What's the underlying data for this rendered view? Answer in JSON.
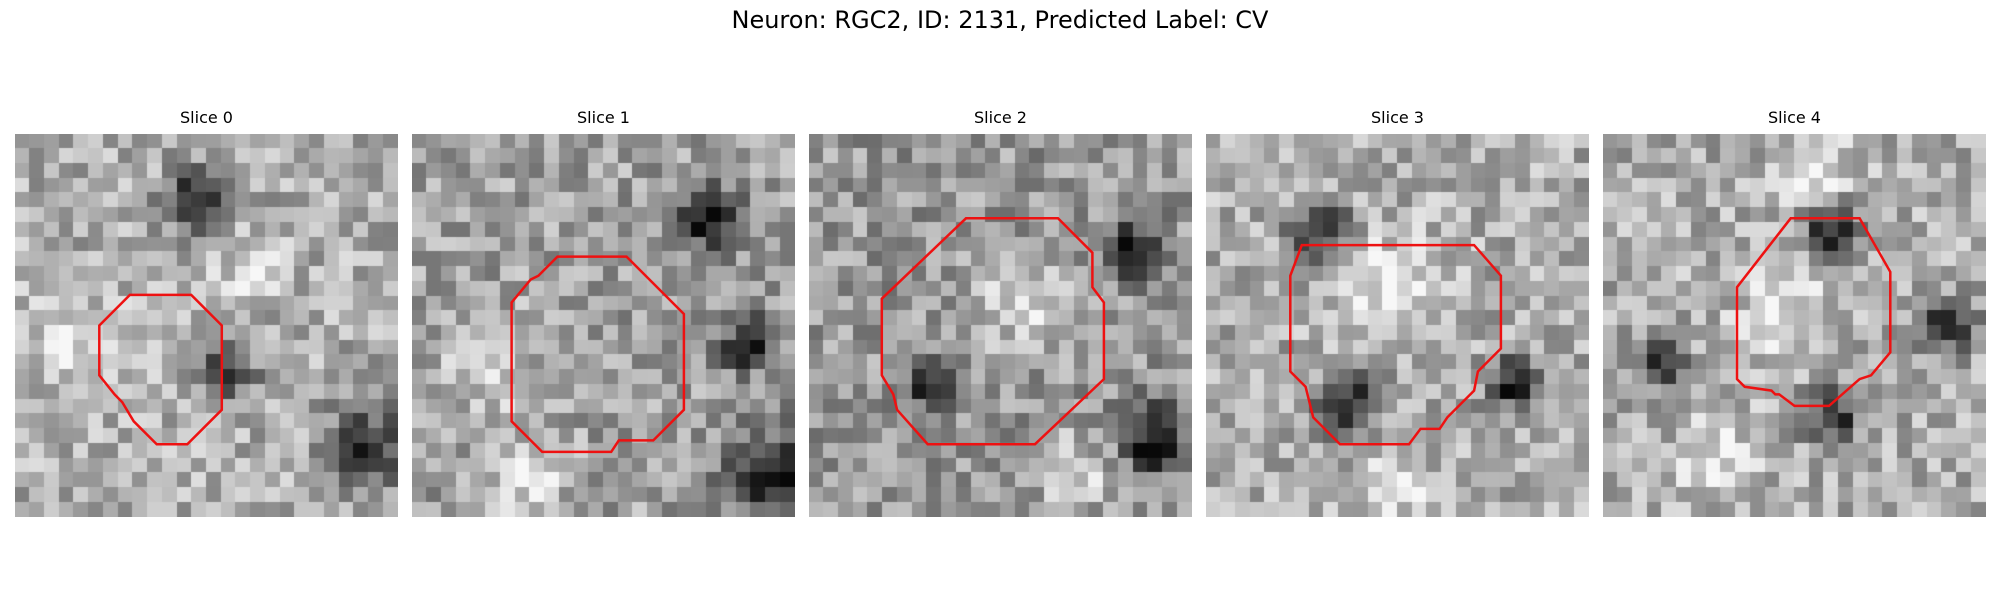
{
  "title": "Neuron: RGC2, ID: 2131, Predicted Label: CV",
  "contour_color": "#ee1111",
  "slices": [
    {
      "label": "Slice 0",
      "seed": 11,
      "darkness": 0.0,
      "dark_blobs": [
        [
          0.55,
          0.62,
          0.07
        ],
        [
          0.47,
          0.18,
          0.08
        ],
        [
          0.92,
          0.82,
          0.1
        ]
      ],
      "light_blobs": [
        [
          0.62,
          0.37,
          0.08
        ],
        [
          0.15,
          0.55,
          0.12
        ]
      ],
      "contour": [
        [
          0.3,
          0.42
        ],
        [
          0.46,
          0.42
        ],
        [
          0.54,
          0.5
        ],
        [
          0.54,
          0.72
        ],
        [
          0.45,
          0.81
        ],
        [
          0.37,
          0.81
        ],
        [
          0.31,
          0.75
        ],
        [
          0.28,
          0.7
        ],
        [
          0.26,
          0.68
        ],
        [
          0.22,
          0.63
        ],
        [
          0.22,
          0.5
        ]
      ]
    },
    {
      "label": "Slice 1",
      "seed": 23,
      "darkness": 0.05,
      "dark_blobs": [
        [
          0.78,
          0.22,
          0.08
        ],
        [
          0.95,
          0.9,
          0.12
        ],
        [
          0.88,
          0.55,
          0.07
        ]
      ],
      "light_blobs": [
        [
          0.2,
          0.6,
          0.12
        ],
        [
          0.3,
          0.9,
          0.1
        ]
      ],
      "contour": [
        [
          0.33,
          0.37
        ],
        [
          0.38,
          0.32
        ],
        [
          0.56,
          0.32
        ],
        [
          0.71,
          0.47
        ],
        [
          0.71,
          0.72
        ],
        [
          0.63,
          0.8
        ],
        [
          0.54,
          0.8
        ],
        [
          0.52,
          0.83
        ],
        [
          0.34,
          0.83
        ],
        [
          0.26,
          0.75
        ],
        [
          0.26,
          0.44
        ],
        [
          0.31,
          0.38
        ]
      ]
    },
    {
      "label": "Slice 2",
      "seed": 37,
      "darkness": 0.08,
      "dark_blobs": [
        [
          0.33,
          0.66,
          0.06
        ],
        [
          0.85,
          0.3,
          0.07
        ],
        [
          0.9,
          0.8,
          0.09
        ]
      ],
      "light_blobs": [
        [
          0.55,
          0.45,
          0.12
        ],
        [
          0.7,
          0.88,
          0.1
        ]
      ],
      "contour": [
        [
          0.41,
          0.22
        ],
        [
          0.65,
          0.22
        ],
        [
          0.74,
          0.31
        ],
        [
          0.74,
          0.4
        ],
        [
          0.77,
          0.44
        ],
        [
          0.77,
          0.64
        ],
        [
          0.59,
          0.81
        ],
        [
          0.31,
          0.81
        ],
        [
          0.23,
          0.72
        ],
        [
          0.22,
          0.68
        ],
        [
          0.19,
          0.63
        ],
        [
          0.19,
          0.43
        ]
      ]
    },
    {
      "label": "Slice 3",
      "seed": 51,
      "darkness": 0.0,
      "dark_blobs": [
        [
          0.37,
          0.71,
          0.08
        ],
        [
          0.3,
          0.25,
          0.07
        ],
        [
          0.8,
          0.65,
          0.07
        ]
      ],
      "light_blobs": [
        [
          0.5,
          0.4,
          0.13
        ],
        [
          0.5,
          0.92,
          0.08
        ]
      ],
      "contour": [
        [
          0.25,
          0.29
        ],
        [
          0.7,
          0.29
        ],
        [
          0.77,
          0.37
        ],
        [
          0.77,
          0.56
        ],
        [
          0.71,
          0.62
        ],
        [
          0.7,
          0.67
        ],
        [
          0.63,
          0.74
        ],
        [
          0.61,
          0.77
        ],
        [
          0.56,
          0.77
        ],
        [
          0.53,
          0.81
        ],
        [
          0.35,
          0.81
        ],
        [
          0.28,
          0.74
        ],
        [
          0.26,
          0.66
        ],
        [
          0.22,
          0.62
        ],
        [
          0.22,
          0.37
        ]
      ]
    },
    {
      "label": "Slice 4",
      "seed": 67,
      "darkness": 0.0,
      "dark_blobs": [
        [
          0.6,
          0.25,
          0.07
        ],
        [
          0.6,
          0.74,
          0.07
        ],
        [
          0.15,
          0.6,
          0.06
        ],
        [
          0.9,
          0.5,
          0.07
        ]
      ],
      "light_blobs": [
        [
          0.48,
          0.48,
          0.12
        ],
        [
          0.55,
          0.1,
          0.1
        ],
        [
          0.3,
          0.85,
          0.1
        ]
      ],
      "contour": [
        [
          0.49,
          0.22
        ],
        [
          0.67,
          0.22
        ],
        [
          0.75,
          0.36
        ],
        [
          0.75,
          0.57
        ],
        [
          0.7,
          0.63
        ],
        [
          0.67,
          0.64
        ],
        [
          0.59,
          0.71
        ],
        [
          0.5,
          0.71
        ],
        [
          0.46,
          0.68
        ],
        [
          0.45,
          0.68
        ],
        [
          0.44,
          0.67
        ],
        [
          0.37,
          0.66
        ],
        [
          0.35,
          0.64
        ],
        [
          0.35,
          0.4
        ]
      ]
    }
  ]
}
